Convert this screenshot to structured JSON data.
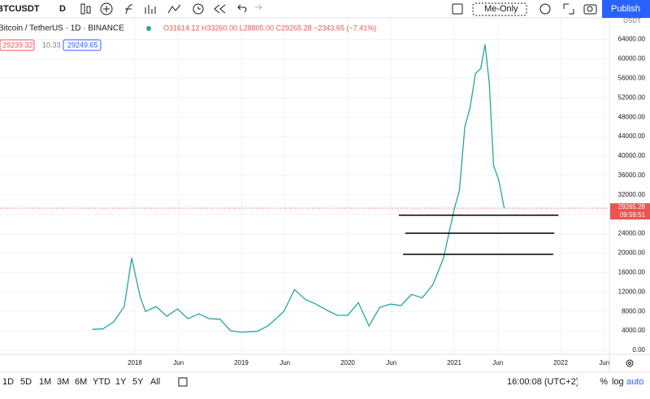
{
  "toolbar": {
    "symbol": "BTCUSDT",
    "interval": "D",
    "layout": "Me-Only",
    "publish": "Publish"
  },
  "legend": {
    "name": "Bitcoin / TetherUS · 1D · BINANCE",
    "ohlc": "O31614.12 H33260.00 L28805.00 C29265.28 −2343.65 (−7.41%)",
    "bid": "29239.32",
    "spread": "10.33",
    "ask": "29249.65"
  },
  "bottom_bar": {
    "ranges": [
      "1D",
      "5D",
      "1M",
      "3M",
      "6M",
      "YTD",
      "1Y",
      "5Y",
      "All"
    ],
    "clock": "16:00:08 (UTC+2)",
    "percent": "%",
    "log": "log",
    "auto": "auto"
  },
  "chart_data": {
    "type": "line",
    "currency": "USDT",
    "series": [
      {
        "color": "#26a69a",
        "x": [
          2017.6,
          2017.7,
          2017.8,
          2017.9,
          2017.97,
          2018.05,
          2018.1,
          2018.2,
          2018.3,
          2018.4,
          2018.5,
          2018.6,
          2018.7,
          2018.8,
          2018.9,
          2019.0,
          2019.15,
          2019.25,
          2019.4,
          2019.5,
          2019.6,
          2019.7,
          2019.8,
          2019.9,
          2020.0,
          2020.1,
          2020.2,
          2020.3,
          2020.4,
          2020.5,
          2020.6,
          2020.7,
          2020.8,
          2020.9,
          2021.0,
          2021.05,
          2021.1,
          2021.15,
          2021.2,
          2021.25,
          2021.29,
          2021.33,
          2021.37,
          2021.42,
          2021.47
        ],
        "values": [
          4300,
          4400,
          5800,
          9000,
          19000,
          11000,
          8000,
          9000,
          7000,
          8500,
          6500,
          7500,
          6500,
          6400,
          4000,
          3700,
          3900,
          5000,
          8000,
          12500,
          10500,
          9500,
          8300,
          7200,
          7200,
          9800,
          5000,
          8800,
          9500,
          9200,
          11500,
          10800,
          13500,
          19000,
          29000,
          33000,
          46000,
          50000,
          57000,
          58000,
          63000,
          55000,
          38000,
          35000,
          29265.28
        ]
      }
    ],
    "last_price": 29265.28,
    "countdown": "09:59:51",
    "levels": [
      {
        "y": 27800,
        "x": [
          2020.48,
          2021.98
        ]
      },
      {
        "y": 24100,
        "x": [
          2020.54,
          2021.94
        ]
      },
      {
        "y": 19750,
        "x": [
          2020.52,
          2021.93
        ]
      }
    ],
    "xlim": [
      2016.733,
      2022.458
    ],
    "xticks": [
      {
        "value": 2018,
        "label": "2018"
      },
      {
        "value": 2018.41,
        "label": "Jun"
      },
      {
        "value": 2019,
        "label": "2019"
      },
      {
        "value": 2019.41,
        "label": "Jun"
      },
      {
        "value": 2020,
        "label": "2020"
      },
      {
        "value": 2020.41,
        "label": "Jun"
      },
      {
        "value": 2021,
        "label": "2021"
      },
      {
        "value": 2021.41,
        "label": "Jun"
      },
      {
        "value": 2022,
        "label": "2022"
      },
      {
        "value": 2022.41,
        "label": "Jun"
      }
    ],
    "ylim": [
      -670,
      68450
    ],
    "yticks": [
      {
        "value": 0,
        "label": "0.00"
      },
      {
        "value": 4000,
        "label": "4000.00"
      },
      {
        "value": 8000,
        "label": "8000.00"
      },
      {
        "value": 12000,
        "label": "12000.00"
      },
      {
        "value": 16000,
        "label": "16000.00"
      },
      {
        "value": 20000,
        "label": "20000.00"
      },
      {
        "value": 24000,
        "label": "24000.00"
      },
      {
        "value": 28000,
        "label": "28000.00"
      },
      {
        "value": 32000,
        "label": "32000.00"
      },
      {
        "value": 36000,
        "label": "36000.00"
      },
      {
        "value": 40000,
        "label": "40000.00"
      },
      {
        "value": 44000,
        "label": "44000.00"
      },
      {
        "value": 48000,
        "label": "48000.00"
      },
      {
        "value": 52000,
        "label": "52000.00"
      },
      {
        "value": 56000,
        "label": "56000.00"
      },
      {
        "value": 60000,
        "label": "60000.00"
      },
      {
        "value": 64000,
        "label": "64000.00"
      }
    ],
    "grid": true
  }
}
